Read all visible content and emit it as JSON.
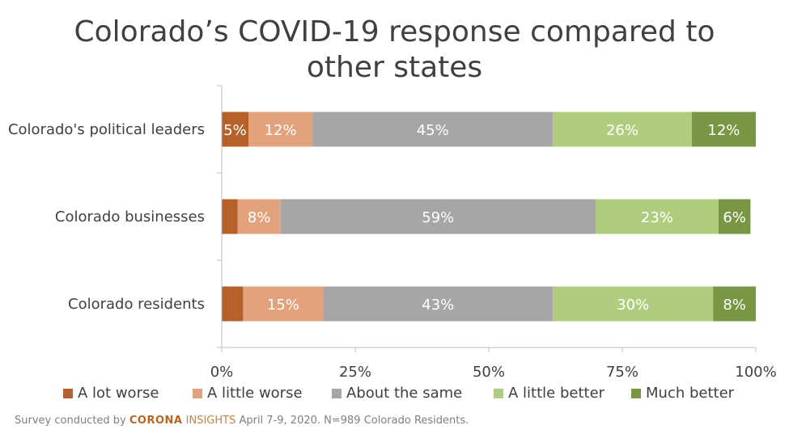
{
  "chart_data": {
    "type": "bar",
    "orientation": "horizontal",
    "stacked": true,
    "title": "Colorado’s COVID-19 response compared to other states",
    "title_lines": [
      "Colorado’s COVID-19 response compared to",
      "other states"
    ],
    "categories": [
      "Colorado's political leaders",
      "Colorado businesses",
      "Colorado residents"
    ],
    "series": [
      {
        "name": "A lot worse",
        "color": "#b5622a",
        "values": [
          5,
          3,
          4
        ],
        "labels": [
          "5%",
          "",
          ""
        ]
      },
      {
        "name": "A little worse",
        "color": "#e1a27c",
        "values": [
          12,
          8,
          15
        ],
        "labels": [
          "12%",
          "8%",
          "15%"
        ]
      },
      {
        "name": "About the same",
        "color": "#a6a6a6",
        "values": [
          45,
          59,
          43
        ],
        "labels": [
          "45%",
          "59%",
          "43%"
        ]
      },
      {
        "name": "A little better",
        "color": "#b0cc7e",
        "values": [
          26,
          23,
          30
        ],
        "labels": [
          "26%",
          "23%",
          "30%"
        ]
      },
      {
        "name": "Much better",
        "color": "#789643",
        "values": [
          12,
          6,
          8
        ],
        "labels": [
          "12%",
          "6%",
          "8%"
        ]
      }
    ],
    "xlim": [
      0,
      100
    ],
    "x_ticks": [
      "0%",
      "25%",
      "50%",
      "75%",
      "100%"
    ],
    "legend_position": "bottom",
    "grid": false
  },
  "source": {
    "prefix": "Survey conducted by ",
    "brand_part1": "CORONA",
    "brand_part2": " INSIGHTS",
    "suffix": " April 7-9, 2020. N=989 Colorado Residents."
  }
}
